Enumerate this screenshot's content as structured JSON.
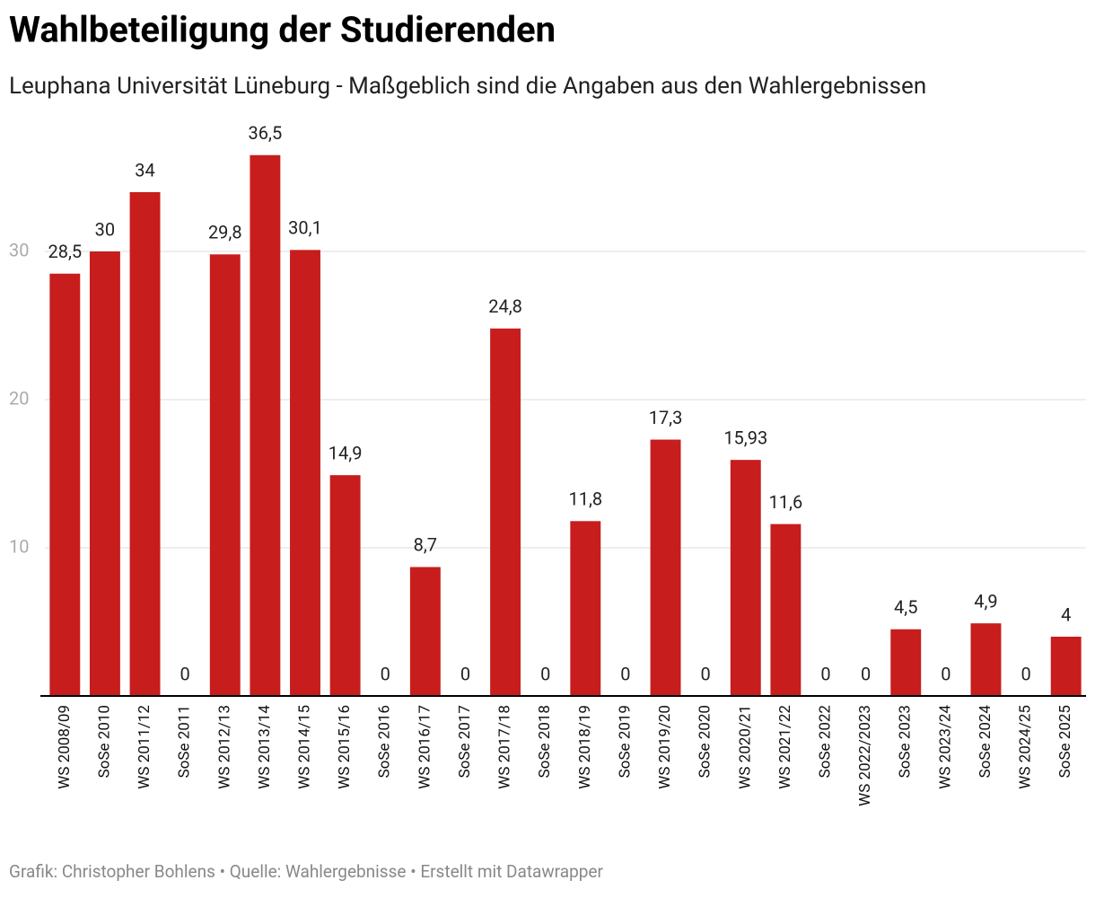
{
  "chart_data": {
    "type": "bar",
    "title": "Wahlbeteiligung der Studierenden",
    "subtitle": "Leuphana Universität Lüneburg - Maßgeblich sind die Angaben aus den Wahlergebnissen",
    "footer": "Grafik: Christopher Bohlens • Quelle: Wahlergebnisse • Erstellt mit Datawrapper",
    "categories": [
      "WS 2008/09",
      "SoSe 2010",
      "WS 2011/12",
      "SoSe 2011",
      "WS 2012/13",
      "WS 2013/14",
      "WS 2014/15",
      "WS 2015/16",
      "SoSe 2016",
      "WS 2016/17",
      "SoSe 2017",
      "WS 2017/18",
      "SoSe 2018",
      "WS 2018/19",
      "SoSe 2019",
      "WS 2019/20",
      "SoSe 2020",
      "WS 2020/21",
      "WS 2021/22",
      "SoSe 2022",
      "WS 2022/2023",
      "SoSe 2023",
      "WS 2023/24",
      "SoSe 2024",
      "WS 2024/25",
      "SoSe 2025"
    ],
    "values": [
      28.5,
      30,
      34,
      0,
      29.8,
      36.5,
      30.1,
      14.9,
      0,
      8.7,
      0,
      24.8,
      0,
      11.8,
      0,
      17.3,
      0,
      15.93,
      11.6,
      0,
      0,
      4.5,
      0,
      4.9,
      0,
      4
    ],
    "value_labels": [
      "28,5",
      "30",
      "34",
      "0",
      "29,8",
      "36,5",
      "30,1",
      "14,9",
      "0",
      "8,7",
      "0",
      "24,8",
      "0",
      "11,8",
      "0",
      "17,3",
      "0",
      "15,93",
      "11,6",
      "0",
      "0",
      "4,5",
      "0",
      "4,9",
      "0",
      "4"
    ],
    "color": "#c71d1d",
    "ylim": [
      0,
      38
    ],
    "yticks": [
      10,
      20,
      30
    ],
    "grid": true
  }
}
